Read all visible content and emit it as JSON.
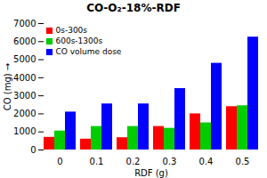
{
  "chart_data": {
    "type": "bar",
    "title": "CO-O₂-18%-RDF",
    "xlabel": "RDF (g)",
    "ylabel": "CO (mg)",
    "categories": [
      "0",
      "0.1",
      "0.2",
      "0.3",
      "0.4",
      "0.5"
    ],
    "series": [
      {
        "name": "0s-300s",
        "color": "#ff0000",
        "values": [
          700,
          600,
          680,
          1300,
          2000,
          2400
        ]
      },
      {
        "name": "600s-1300s",
        "color": "#00cc00",
        "values": [
          1050,
          1300,
          1300,
          1200,
          1500,
          2450
        ]
      },
      {
        "name": "CO volume dose",
        "color": "#0000ff",
        "values": [
          2100,
          2550,
          2550,
          3400,
          4800,
          6250
        ]
      }
    ],
    "ylim": [
      0,
      7000
    ],
    "yticks": [
      0,
      1000,
      2000,
      3000,
      4000,
      5000,
      6000,
      7000
    ],
    "legend": "upper left",
    "grid": false
  }
}
